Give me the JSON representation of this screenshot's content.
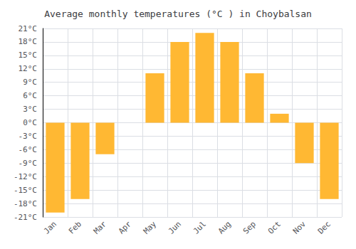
{
  "chart_data": {
    "type": "bar",
    "title": "Average monthly temperatures (°C ) in Choybalsan",
    "categories": [
      "Jan",
      "Feb",
      "Mar",
      "Apr",
      "May",
      "Jun",
      "Jul",
      "Aug",
      "Sep",
      "Oct",
      "Nov",
      "Dec"
    ],
    "values": [
      -20,
      -17,
      -7,
      0,
      11,
      18,
      20,
      18,
      11,
      2,
      -9,
      -17
    ],
    "color": "#FFB833",
    "ylim": [
      -21,
      21
    ],
    "yticks": [
      {
        "value": -21,
        "label": "-21°C"
      },
      {
        "value": -18,
        "label": "-18°C"
      },
      {
        "value": -15,
        "label": "-15°C"
      },
      {
        "value": -12,
        "label": "-12°C"
      },
      {
        "value": -9,
        "label": "-9°C"
      },
      {
        "value": -6,
        "label": "-6°C"
      },
      {
        "value": -3,
        "label": "-3°C"
      },
      {
        "value": 0,
        "label": "0°C"
      },
      {
        "value": 3,
        "label": "3°C"
      },
      {
        "value": 6,
        "label": "6°C"
      },
      {
        "value": 9,
        "label": "9°C"
      },
      {
        "value": 12,
        "label": "12°C"
      },
      {
        "value": 15,
        "label": "15°C"
      },
      {
        "value": 18,
        "label": "18°C"
      },
      {
        "value": 21,
        "label": "21°C"
      }
    ],
    "grid": true
  }
}
